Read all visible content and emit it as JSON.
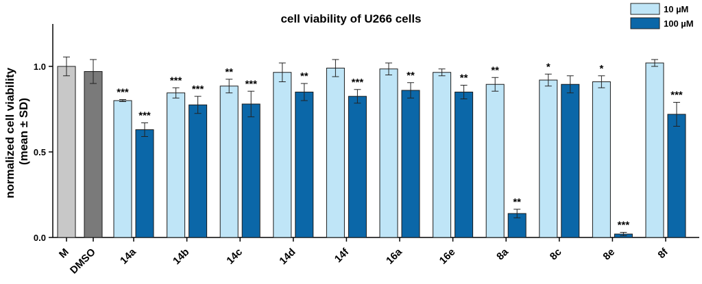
{
  "chart_data": {
    "type": "bar",
    "title": "cell viability of U266 cells",
    "ylabel_line1": "normalized cell viability",
    "ylabel_line2": "(mean ± SD)",
    "ylim": [
      0,
      1.25
    ],
    "yticks": [
      "0.0",
      "0.5",
      "1.0"
    ],
    "ytick_values": [
      0,
      0.5,
      1.0
    ],
    "legend": {
      "position": "top-right",
      "entries": [
        {
          "label": "10 µM",
          "color": "#bfe5f7"
        },
        {
          "label": "100 µM",
          "color": "#0b67a8"
        }
      ]
    },
    "colors": {
      "control_M": "#c8c8c8",
      "control_DMSO": "#7a7a7a",
      "low": "#bfe5f7",
      "high": "#0b67a8"
    },
    "controls": [
      {
        "category": "M",
        "value": 1.0,
        "sd": 0.055
      },
      {
        "category": "DMSO",
        "value": 0.97,
        "sd": 0.07
      }
    ],
    "categories": [
      "14a",
      "14b",
      "14c",
      "14d",
      "14f",
      "16a",
      "16e",
      "8a",
      "8c",
      "8e",
      "8f"
    ],
    "series": [
      {
        "name": "10 µM",
        "values": [
          0.8,
          0.845,
          0.885,
          0.965,
          0.99,
          0.985,
          0.965,
          0.895,
          0.92,
          0.91,
          1.02
        ],
        "sd": [
          0.006,
          0.03,
          0.04,
          0.055,
          0.05,
          0.035,
          0.02,
          0.04,
          0.035,
          0.035,
          0.02
        ],
        "significance": [
          "***",
          "***",
          "**",
          "",
          "",
          "",
          "",
          "**",
          "*",
          "*",
          ""
        ]
      },
      {
        "name": "100 µM",
        "values": [
          0.63,
          0.775,
          0.78,
          0.85,
          0.825,
          0.86,
          0.85,
          0.14,
          0.895,
          0.02,
          0.72
        ],
        "sd": [
          0.04,
          0.05,
          0.075,
          0.05,
          0.04,
          0.045,
          0.04,
          0.025,
          0.05,
          0.01,
          0.07
        ],
        "significance": [
          "***",
          "***",
          "***",
          "**",
          "***",
          "**",
          "**",
          "**",
          "",
          "***",
          "***"
        ]
      }
    ]
  }
}
